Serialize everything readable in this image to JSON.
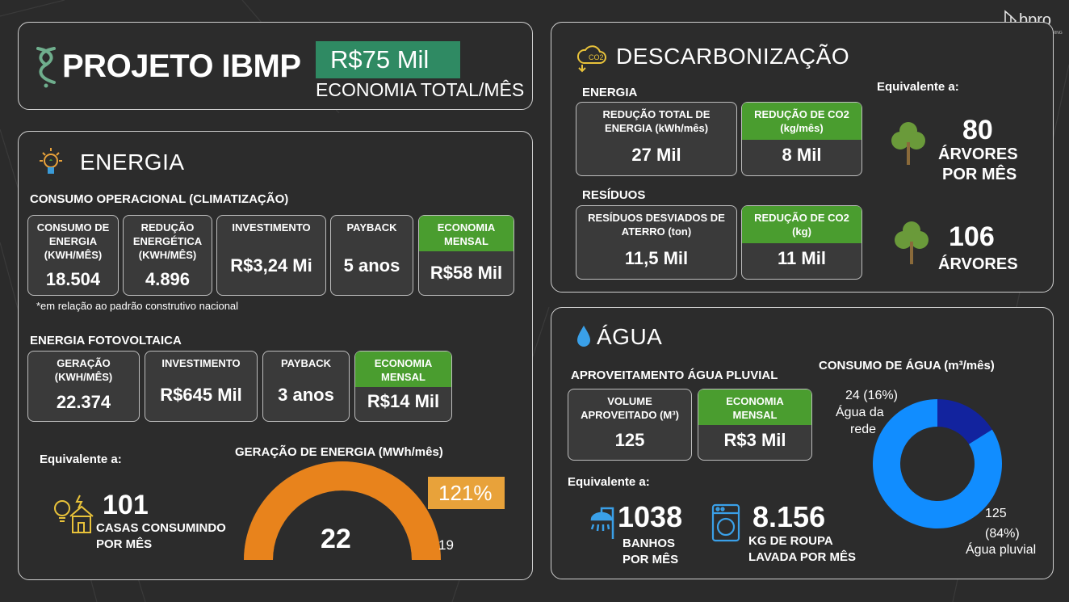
{
  "header": {
    "project_title": "PROJETO IBMP",
    "economy_value": "R$75 Mil",
    "economy_label": "ECONOMIA TOTAL/MÊS",
    "logo_text": "bpro",
    "logo_sub": "SMART ENGINEERING"
  },
  "energia": {
    "title": "ENERGIA",
    "consumo_title": "CONSUMO OPERACIONAL (CLIMATIZAÇÃO)",
    "consumo_cards": [
      {
        "label": "CONSUMO DE ENERGIA (KWH/MÊS)",
        "value": "18.504"
      },
      {
        "label": "REDUÇÃO ENERGÉTICA (KWH/MÊS)",
        "value": "4.896"
      },
      {
        "label": "INVESTIMENTO",
        "value": "R$3,24 Mi"
      },
      {
        "label": "PAYBACK",
        "value": "5 anos"
      },
      {
        "label": "ECONOMIA MENSAL",
        "value": "R$58 Mil"
      }
    ],
    "footnote": "*em relação ao padrão construtivo nacional",
    "foto_title": "ENERGIA FOTOVOLTAICA",
    "foto_cards": [
      {
        "label": "GERAÇÃO (KWH/MÊS)",
        "value": "22.374"
      },
      {
        "label": "INVESTIMENTO",
        "value": "R$645 Mil"
      },
      {
        "label": "PAYBACK",
        "value": "3 anos"
      },
      {
        "label": "ECONOMIA MENSAL",
        "value": "R$14 Mil"
      }
    ],
    "equivalente_label": "Equivalente a:",
    "casas_value": "101",
    "casas_label_1": "CASAS CONSUMINDO",
    "casas_label_2": "POR MÊS",
    "gauge_title": "GERAÇÃO DE ENERGIA (MWh/mês)",
    "gauge_value": "22",
    "gauge_target": "19",
    "gauge_percent": "121%",
    "gauge_fill_fraction": 1.0
  },
  "descarbonizacao": {
    "title": "DESCARBONIZAÇÃO",
    "energia_label": "ENERGIA",
    "energia_cards": [
      {
        "label": "REDUÇÃO TOTAL DE ENERGIA (kWh/mês)",
        "value": "27 Mil"
      },
      {
        "label": "REDUÇÃO DE CO2 (kg/mês)",
        "value": "8 Mil"
      }
    ],
    "residuos_label": "RESÍDUOS",
    "residuos_cards": [
      {
        "label": "RESÍDUOS DESVIADOS DE ATERRO (ton)",
        "value": "11,5 Mil"
      },
      {
        "label": "REDUÇÃO DE CO2 (kg)",
        "value": "11 Mil"
      }
    ],
    "equivalente_label": "Equivalente a:",
    "arvores1_value": "80",
    "arvores1_label_1": "ÁRVORES",
    "arvores1_label_2": "POR MÊS",
    "arvores2_value": "106",
    "arvores2_label": "ÁRVORES"
  },
  "agua": {
    "title": "ÁGUA",
    "aproveitamento_title": "APROVEITAMENTO ÁGUA PLUVIAL",
    "cards": [
      {
        "label": "VOLUME APROVEITADO (M³)",
        "value": "125"
      },
      {
        "label": "ECONOMIA MENSAL",
        "value": "R$3 Mil"
      }
    ],
    "equivalente_label": "Equivalente a:",
    "banhos_value": "1038",
    "banhos_label_1": "BANHOS",
    "banhos_label_2": "POR MÊS",
    "roupa_value": "8.156",
    "roupa_label_1": "KG DE ROUPA",
    "roupa_label_2": "LAVADA POR MÊS",
    "colors": {
      "pluvial": "#118dff",
      "rede": "#12239e"
    }
  },
  "chart_data": {
    "type": "pie",
    "title": "CONSUMO DE ÁGUA (m³/mês)",
    "categories": [
      "Água pluvial",
      "Água da rede"
    ],
    "values": [
      125,
      24
    ],
    "percent_labels": [
      "(84%)",
      "24 (16%)"
    ],
    "value_labels": [
      "125",
      "24 (16%)"
    ],
    "slice_labels": [
      "Água pluvial",
      "Água da rede"
    ],
    "rede_label_lines": [
      "Água da",
      "rede"
    ]
  }
}
